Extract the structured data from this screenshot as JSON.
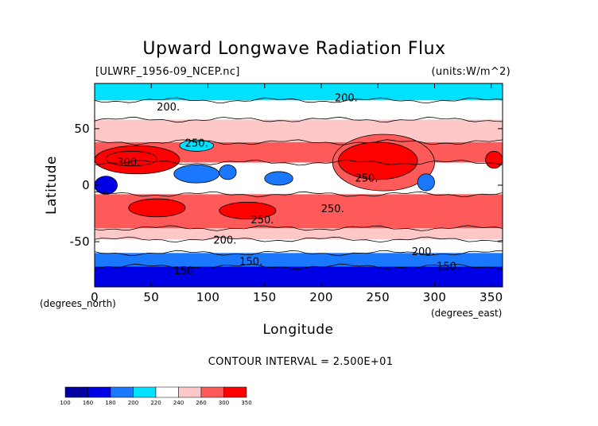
{
  "chart_data": {
    "type": "contour-map",
    "title": "Upward Longwave Radiation Flux",
    "source_label": "[ULWRF_1956-09_NCEP.nc]",
    "units_label": "(units:W/m^2)",
    "xlabel": "Longitude",
    "ylabel": "Latitude",
    "x_units": "(degrees_east)",
    "y_units": "(degrees_north)",
    "xlim": [
      0,
      360
    ],
    "ylim": [
      -90,
      90
    ],
    "x_ticks": [
      0,
      50,
      100,
      150,
      200,
      250,
      300,
      350
    ],
    "y_ticks": [
      -50,
      0,
      50
    ],
    "x_tick_labels": [
      "0",
      "50",
      "100",
      "150",
      "200",
      "250",
      "300",
      "350"
    ],
    "y_tick_labels": [
      "-50",
      "0",
      "50"
    ],
    "contour_interval_text": "CONTOUR INTERVAL = 2.500E+01",
    "contour_labels": [
      {
        "text": "200.",
        "lon": 65,
        "lat": 69
      },
      {
        "text": "200.",
        "lon": 222,
        "lat": 77
      },
      {
        "text": "250.",
        "lon": 90,
        "lat": 37
      },
      {
        "text": "300.",
        "lon": 30,
        "lat": 20
      },
      {
        "text": "250.",
        "lon": 240,
        "lat": 6
      },
      {
        "text": "250.",
        "lon": 210,
        "lat": -21
      },
      {
        "text": "250.",
        "lon": 148,
        "lat": -31
      },
      {
        "text": "200.",
        "lon": 115,
        "lat": -49
      },
      {
        "text": "200.",
        "lon": 290,
        "lat": -59
      },
      {
        "text": "150.",
        "lon": 80,
        "lat": -76
      },
      {
        "text": "150.",
        "lon": 138,
        "lat": -68
      },
      {
        "text": "150.",
        "lon": 312,
        "lat": -72
      }
    ],
    "colorbar": {
      "levels": [
        100,
        160,
        180,
        200,
        220,
        240,
        260,
        300,
        350
      ],
      "labels": [
        "100",
        "160",
        "180",
        "200",
        "220",
        "240",
        "260",
        "300",
        "350"
      ],
      "colors": [
        "#0000a0",
        "#0000e6",
        "#1a78ff",
        "#00e0ff",
        "#ffffff",
        "#ffc8c8",
        "#ff5a5a",
        "#ff0000"
      ]
    },
    "palette": {
      "deep": "#0000a0",
      "dark_blue": "#0000e6",
      "mid_blue": "#1a78ff",
      "cyan": "#00e0ff",
      "white": "#ffffff",
      "pink": "#ffc8c8",
      "salmon": "#ff5a5a",
      "red": "#ff0000"
    },
    "field_regions": [
      {
        "band": "polar-north",
        "level": 200,
        "lon": [
          0,
          360
        ],
        "lat": [
          75,
          90
        ]
      },
      {
        "band": "north-midlat",
        "level": 220,
        "lon": [
          0,
          360
        ],
        "lat": [
          58,
          75
        ]
      },
      {
        "band": "north-subtropic",
        "level": 240,
        "lon": [
          0,
          360
        ],
        "lat": [
          38,
          58
        ]
      },
      {
        "band": "north-subtropic-warm",
        "level": 260,
        "lon": [
          0,
          360
        ],
        "lat": [
          20,
          38
        ]
      },
      {
        "band": "equatorial",
        "level": 220,
        "lon": [
          0,
          360
        ],
        "lat": [
          -8,
          20
        ]
      },
      {
        "band": "south-tropic",
        "level": 260,
        "lon": [
          0,
          360
        ],
        "lat": [
          -38,
          -8
        ]
      },
      {
        "band": "south-midlat",
        "level": 240,
        "lon": [
          0,
          360
        ],
        "lat": [
          -48,
          -38
        ]
      },
      {
        "band": "southern-ocean",
        "level": 220,
        "lon": [
          0,
          360
        ],
        "lat": [
          -60,
          -48
        ]
      },
      {
        "band": "antarctic-edge",
        "level": 180,
        "lon": [
          0,
          360
        ],
        "lat": [
          -72,
          -60
        ]
      },
      {
        "band": "antarctic",
        "level": 160,
        "lon": [
          0,
          360
        ],
        "lat": [
          -90,
          -72
        ]
      },
      {
        "band": "sahara-arabia",
        "level": 300,
        "lon": [
          0,
          75
        ],
        "lat": [
          10,
          35
        ]
      },
      {
        "band": "n-africa-core",
        "level": 330,
        "lon": [
          10,
          55
        ],
        "lat": [
          17,
          30
        ]
      },
      {
        "band": "north-america",
        "level": 260,
        "lon": [
          210,
          300
        ],
        "lat": [
          -5,
          45
        ]
      },
      {
        "band": "n-pacific-warm",
        "level": 300,
        "lon": [
          215,
          285
        ],
        "lat": [
          5,
          38
        ]
      },
      {
        "band": "mexico",
        "level": 300,
        "lon": [
          345,
          360
        ],
        "lat": [
          15,
          30
        ]
      },
      {
        "band": "indian-ocean",
        "level": 300,
        "lon": [
          30,
          80
        ],
        "lat": [
          -28,
          -12
        ]
      },
      {
        "band": "australia",
        "level": 300,
        "lon": [
          110,
          160
        ],
        "lat": [
          -30,
          -15
        ]
      },
      {
        "band": "amazon",
        "level": 180,
        "lon": [
          285,
          300
        ],
        "lat": [
          -5,
          10
        ]
      },
      {
        "band": "africa-congo",
        "level": 160,
        "lon": [
          0,
          20
        ],
        "lat": [
          -8,
          8
        ]
      },
      {
        "band": "indo-warm-pool",
        "level": 180,
        "lon": [
          70,
          110
        ],
        "lat": [
          2,
          18
        ]
      },
      {
        "band": "maritime-continent",
        "level": 180,
        "lon": [
          110,
          125
        ],
        "lat": [
          5,
          18
        ]
      },
      {
        "band": "w-pacific",
        "level": 180,
        "lon": [
          150,
          175
        ],
        "lat": [
          0,
          12
        ]
      },
      {
        "band": "tibet",
        "level": 200,
        "lon": [
          75,
          105
        ],
        "lat": [
          30,
          40
        ]
      }
    ]
  }
}
